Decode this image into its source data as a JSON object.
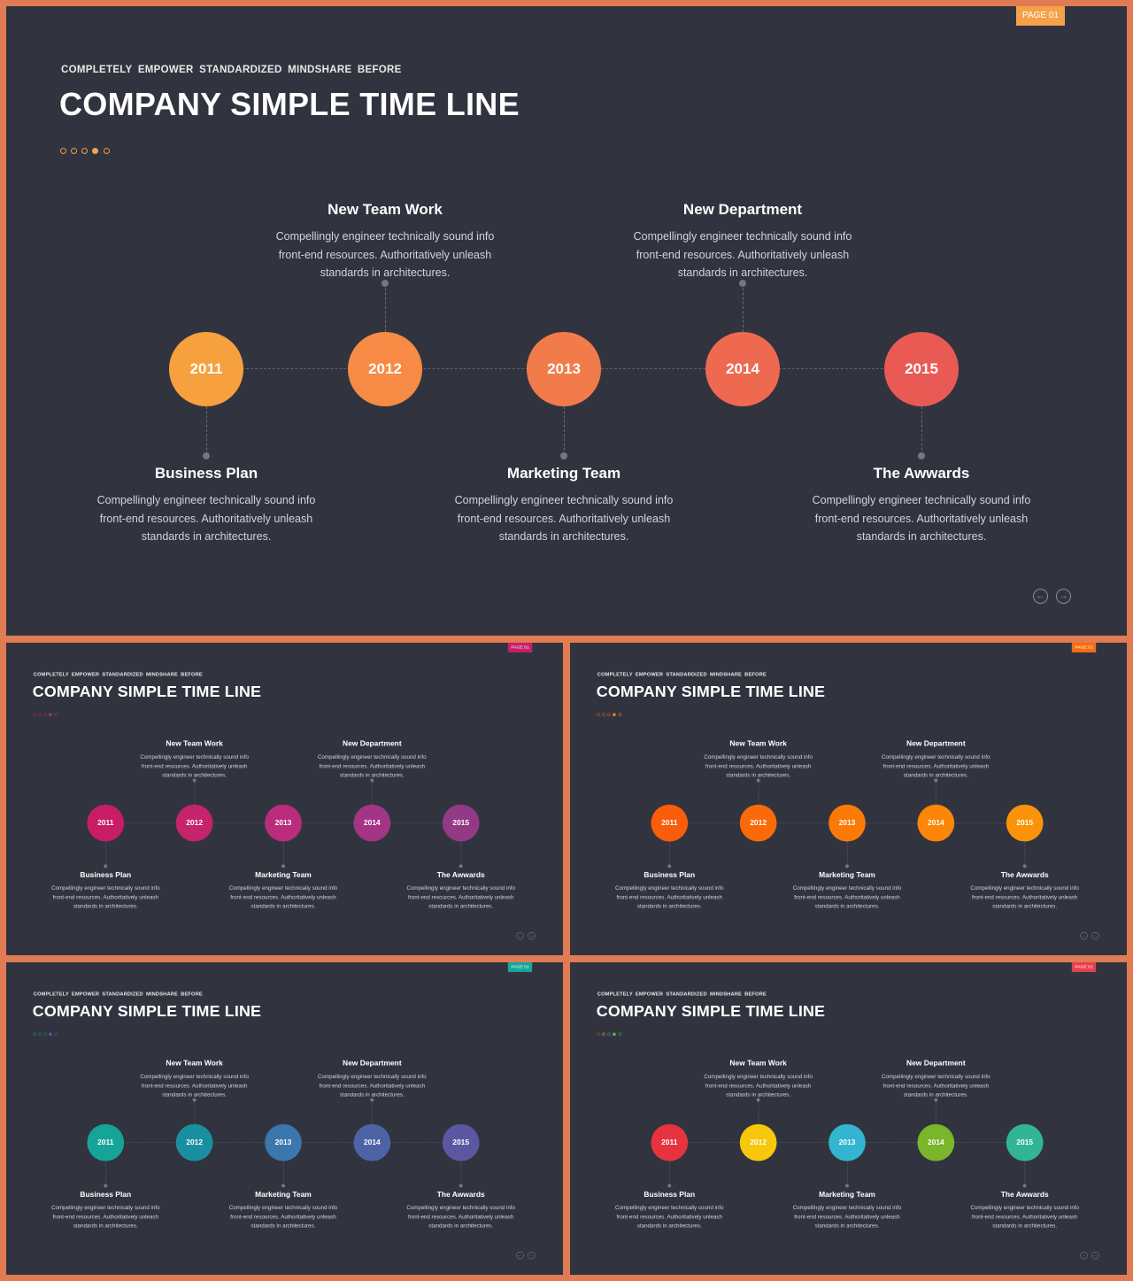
{
  "slide": {
    "page_label": "PAGE 01",
    "subtitle": "COMPLETELY  EMPOWER  STANDARDIZED  MINDSHARE  BEFORE",
    "title": "COMPANY SIMPLE TIME LINE",
    "years": [
      "2011",
      "2012",
      "2013",
      "2014",
      "2015"
    ],
    "milestones": [
      {
        "heading": "Business Plan",
        "text": "Compellingly engineer technically sound info front-end  resources. Authoritatively unleash standards in architectures."
      },
      {
        "heading": "New Team Work",
        "text": "Compellingly engineer technically sound info front-end  resources. Authoritatively unleash standards in architectures."
      },
      {
        "heading": "Marketing Team",
        "text": "Compellingly engineer technically sound info front-end  resources. Authoritatively unleash standards in architectures."
      },
      {
        "heading": "New Department",
        "text": "Compellingly engineer technically sound info front-end  resources. Authoritatively unleash standards in architectures."
      },
      {
        "heading": "The Awwards",
        "text": "Compellingly engineer technically sound info front-end  resources. Authoritatively unleash standards in architectures."
      }
    ],
    "nav_prev_icon": "arrow-left-circle-icon",
    "nav_next_icon": "arrow-right-circle-icon"
  },
  "themes": [
    {
      "badge": "#f7a04a",
      "circles": [
        "#f6a03e",
        "#f78b45",
        "#f27b4c",
        "#ef6950",
        "#ea5a55"
      ],
      "dots": [
        "#f09a4c",
        "#f09a4c",
        "#f09a4c",
        "#f7a04a",
        "#f09a4c"
      ]
    },
    {
      "badge": "#c81f6a",
      "circles": [
        "#c91c66",
        "#c5236c",
        "#b92d7c",
        "#a33486",
        "#933a87"
      ],
      "dots": [
        "#c91c66",
        "#c5236c",
        "#b92d7c",
        "#a33486",
        "#933a87"
      ]
    },
    {
      "badge": "#f96b12",
      "circles": [
        "#f95c0a",
        "#fb6a08",
        "#fb7a06",
        "#fc8608",
        "#fb930a"
      ],
      "dots": [
        "#f95c0a",
        "#fb6a08",
        "#fb7a06",
        "#fc8608",
        "#fb930a"
      ]
    },
    {
      "badge": "#17a79a",
      "circles": [
        "#16a499",
        "#1b8fa2",
        "#3b76ad",
        "#4d63a6",
        "#5c57a3"
      ],
      "dots": [
        "#16a499",
        "#1b8fa2",
        "#3b76ad",
        "#4d63a6",
        "#5c57a3"
      ]
    },
    {
      "badge": "#e6404f",
      "circles": [
        "#e7333f",
        "#f6c70b",
        "#33b5d1",
        "#7ab52b",
        "#32b597"
      ],
      "dots": [
        "#e7333f",
        "#f6c70b",
        "#33b5d1",
        "#7ab52b",
        "#32b597"
      ]
    }
  ]
}
